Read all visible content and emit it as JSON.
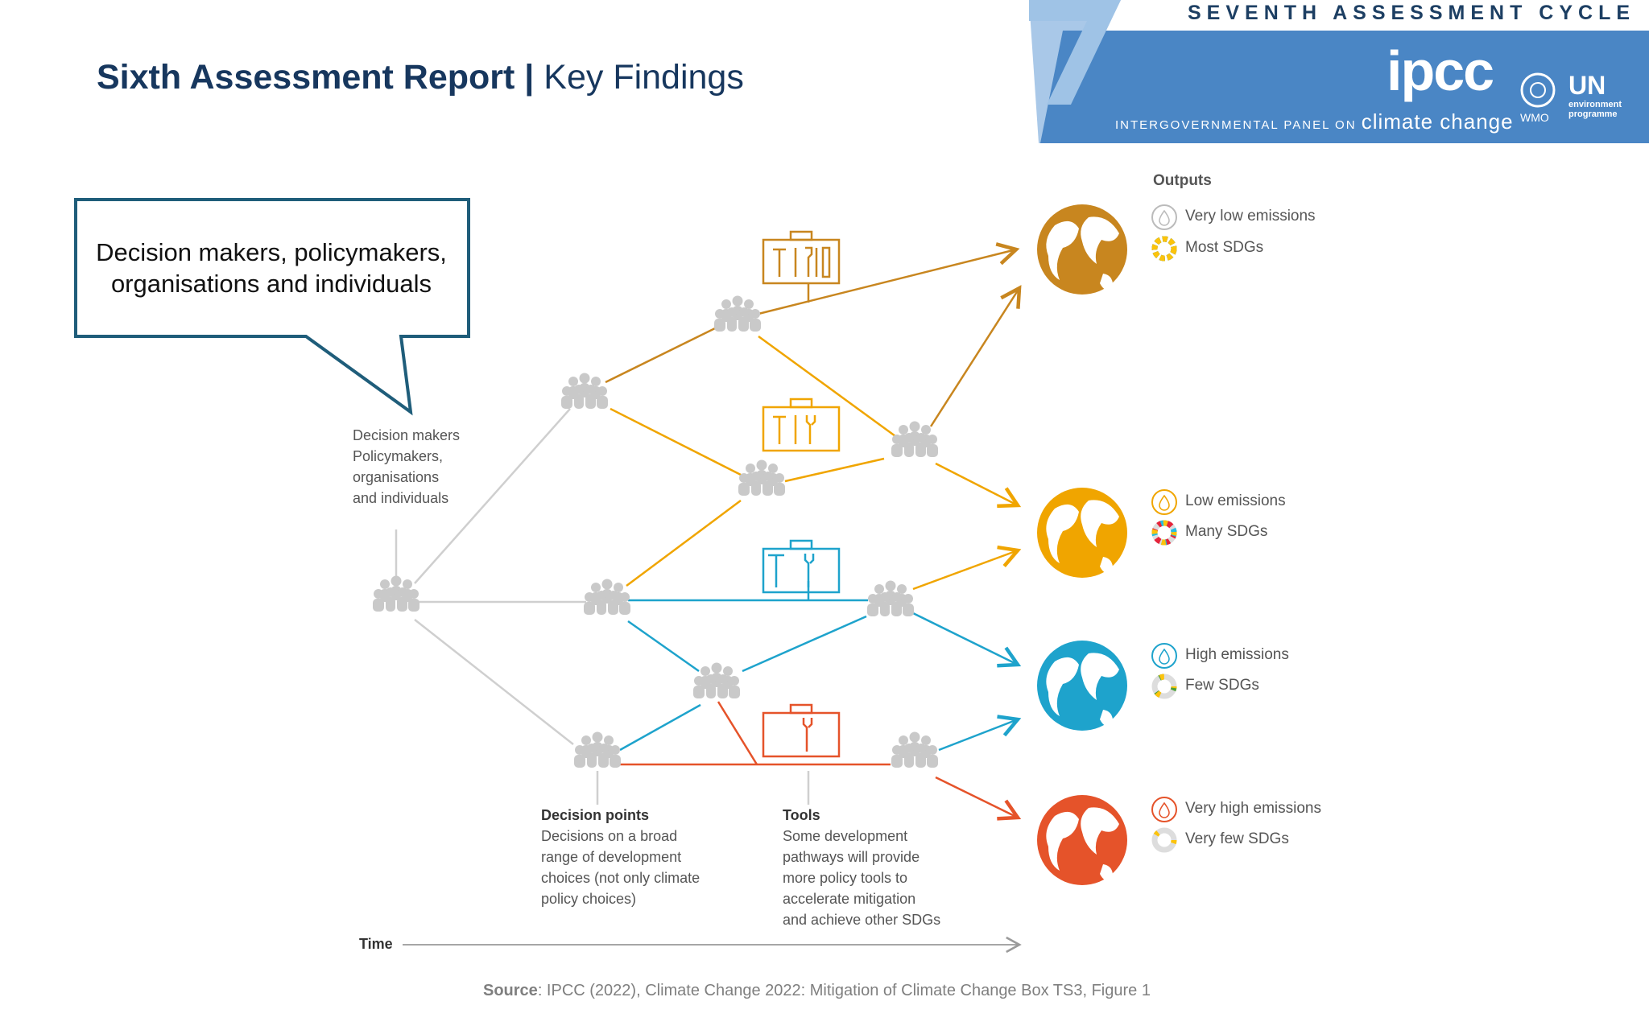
{
  "header": {
    "title_bold": "Sixth Assessment Report |",
    "title_regular": " Key Findings"
  },
  "banner": {
    "cycle": "SEVENTH ASSESSMENT CYCLE",
    "logo": "ipcc",
    "org_prefix": "INTERGOVERNMENTAL PANEL ON ",
    "org_suffix": "climate change",
    "wmo": "WMO",
    "unep": "UN",
    "unep_sub1": "environment",
    "unep_sub2": "programme"
  },
  "callout": {
    "text": "Decision makers, policymakers, organisations and individuals"
  },
  "diagram": {
    "actors_label": [
      "Decision makers",
      "Policymakers,",
      "organisations",
      "and individuals"
    ],
    "decision_points_title": "Decision points",
    "decision_points_text": [
      "Decisions on a broad",
      "range of development",
      "choices (not only climate",
      "policy choices)"
    ],
    "tools_title": "Tools",
    "tools_text": [
      "Some development",
      "pathways will provide",
      "more policy tools to",
      "accelerate mitigation",
      "and achieve other SDGs"
    ],
    "time_label": "Time",
    "outputs_title": "Outputs",
    "outputs": [
      {
        "emissions": "Very low emissions",
        "sdgs": "Most SDGs",
        "color": "#c8861f"
      },
      {
        "emissions": "Low emissions",
        "sdgs": "Many SDGs",
        "color": "#f0a500"
      },
      {
        "emissions": "High emissions",
        "sdgs": "Few SDGs",
        "color": "#1ea3cc"
      },
      {
        "emissions": "Very high emissions",
        "sdgs": "Very few SDGs",
        "color": "#e5532a"
      }
    ]
  },
  "source": {
    "label": "Source",
    "text": ": IPCC (2022), Climate Change 2022: Mitigation of Climate Change Box TS3, Figure 1"
  }
}
